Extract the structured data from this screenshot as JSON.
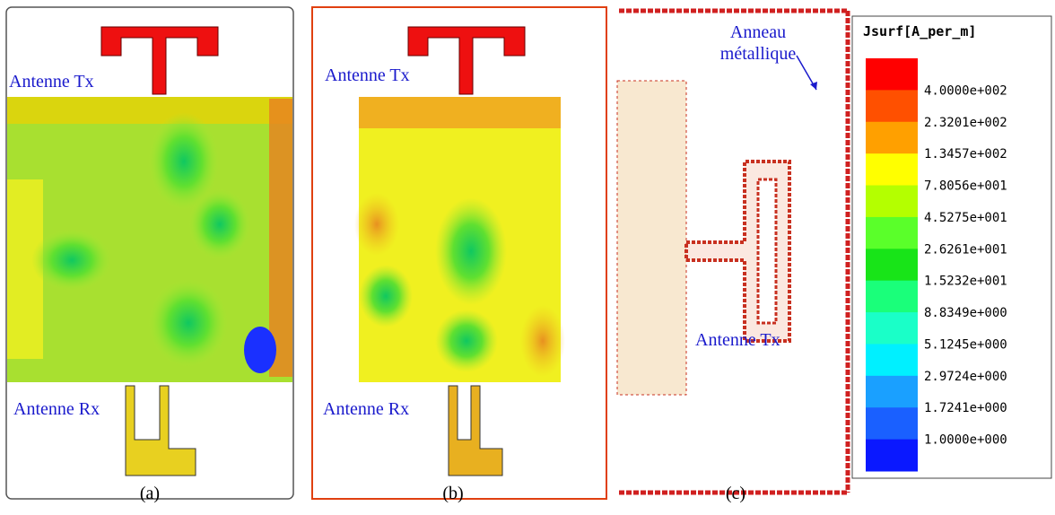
{
  "panels": [
    {
      "caption": "(a)",
      "tx_label": "Antenne Tx",
      "rx_label": "Antenne Rx"
    },
    {
      "caption": "(b)",
      "tx_label": "Antenne Tx",
      "rx_label": "Antenne Rx"
    },
    {
      "caption": "(c)",
      "ring_label_lines": [
        "Anneau",
        "métallique"
      ],
      "tx_label": "Antenne Tx"
    }
  ],
  "legend": {
    "title": "Jsurf[A_per_m]",
    "levels": [
      "4.0000e+002",
      "2.3201e+002",
      "1.3457e+002",
      "7.8056e+001",
      "4.5275e+001",
      "2.6261e+001",
      "1.5232e+001",
      "8.8349e+000",
      "5.1245e+000",
      "2.9724e+000",
      "1.7241e+000",
      "1.0000e+000"
    ],
    "colors": [
      "#ff0000",
      "#ff5000",
      "#ffa000",
      "#ffff00",
      "#b4ff00",
      "#5aff2a",
      "#18e418",
      "#1aff7a",
      "#1affc8",
      "#00f0ff",
      "#1aa0ff",
      "#1a60ff",
      "#0a18ff"
    ]
  }
}
